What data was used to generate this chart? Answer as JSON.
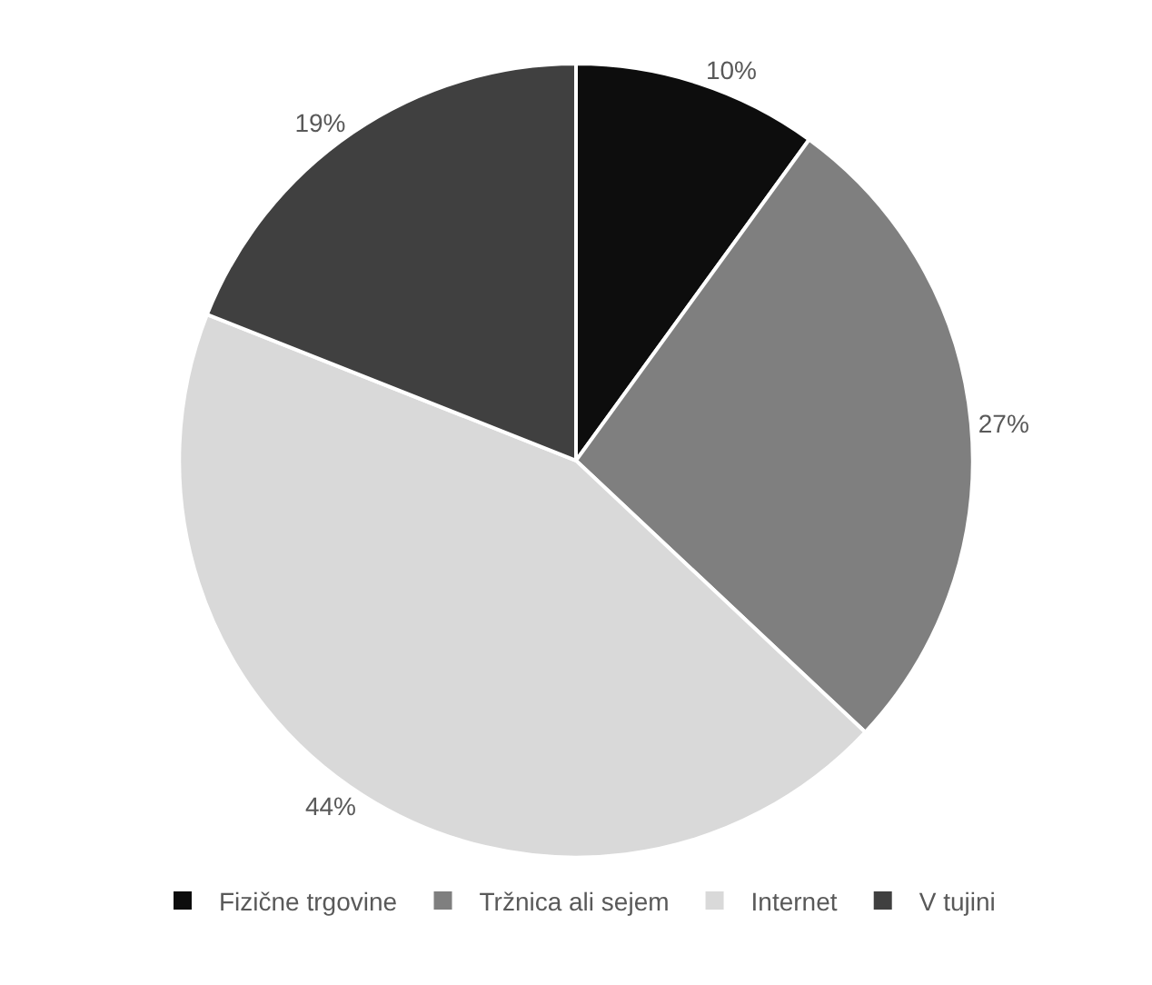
{
  "chart_data": {
    "type": "pie",
    "categories": [
      "Fizične trgovine",
      "Tržnica ali sejem",
      "Internet",
      "V tujini"
    ],
    "values": [
      10,
      27,
      44,
      19
    ],
    "value_labels": [
      "10%",
      "27%",
      "44%",
      "19%"
    ],
    "colors": [
      "#0d0d0d",
      "#7f7f7f",
      "#d9d9d9",
      "#404040"
    ],
    "legend": "bottom"
  }
}
